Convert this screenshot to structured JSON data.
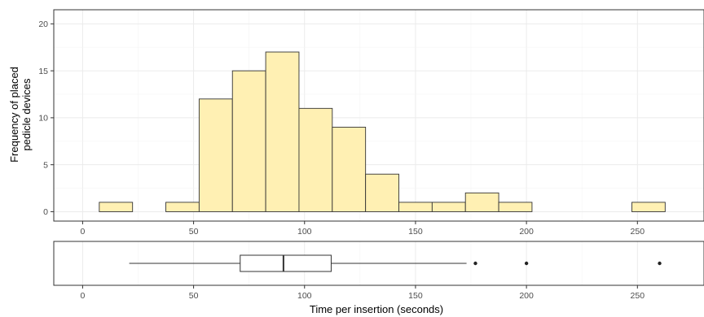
{
  "chart_data": [
    {
      "type": "bar",
      "subtype": "histogram",
      "ylabel": "Frequency of placed pedicle devices",
      "ylabel_lines": [
        "Frequency of placed",
        "pedicle devices"
      ],
      "bins": [
        {
          "x0": 7.5,
          "x1": 22.5,
          "count": 1
        },
        {
          "x0": 22.5,
          "x1": 37.5,
          "count": 0
        },
        {
          "x0": 37.5,
          "x1": 52.5,
          "count": 1
        },
        {
          "x0": 52.5,
          "x1": 67.5,
          "count": 12
        },
        {
          "x0": 67.5,
          "x1": 82.5,
          "count": 15
        },
        {
          "x0": 82.5,
          "x1": 97.5,
          "count": 17
        },
        {
          "x0": 97.5,
          "x1": 112.5,
          "count": 11
        },
        {
          "x0": 112.5,
          "x1": 127.5,
          "count": 9
        },
        {
          "x0": 127.5,
          "x1": 142.5,
          "count": 4
        },
        {
          "x0": 142.5,
          "x1": 157.5,
          "count": 1
        },
        {
          "x0": 157.5,
          "x1": 172.5,
          "count": 1
        },
        {
          "x0": 172.5,
          "x1": 187.5,
          "count": 2
        },
        {
          "x0": 187.5,
          "x1": 202.5,
          "count": 1
        },
        {
          "x0": 202.5,
          "x1": 217.5,
          "count": 0
        },
        {
          "x0": 217.5,
          "x1": 232.5,
          "count": 0
        },
        {
          "x0": 232.5,
          "x1": 247.5,
          "count": 0
        },
        {
          "x0": 247.5,
          "x1": 262.5,
          "count": 1
        }
      ],
      "xlim": [
        -13,
        280
      ],
      "ylim": [
        -1,
        21.5
      ],
      "x_ticks": [
        0,
        50,
        100,
        150,
        200,
        250
      ],
      "y_ticks": [
        0,
        5,
        10,
        15,
        20
      ],
      "grid": true,
      "bar_color": "#fff0b3",
      "edge_color": "#333333"
    },
    {
      "type": "boxplot",
      "xlabel": "Time per insertion (seconds)",
      "whisker_low": 21,
      "q1": 71,
      "median": 90.5,
      "q3": 112,
      "whisker_high": 173,
      "outliers": [
        177,
        200,
        260
      ],
      "xlim": [
        -13,
        280
      ],
      "x_ticks": [
        0,
        50,
        100,
        150,
        200,
        250
      ],
      "grid": true
    }
  ]
}
